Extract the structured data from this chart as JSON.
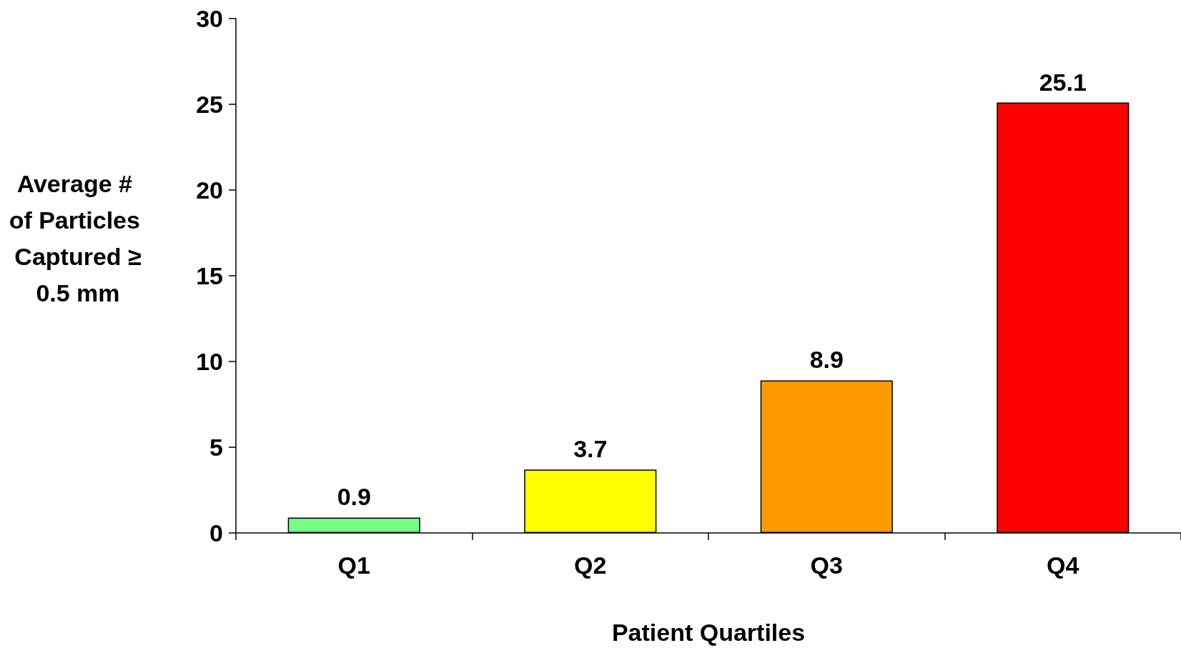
{
  "chart_data": {
    "type": "bar",
    "xlabel": "Patient Quartiles",
    "ylabel": "Average # of Particles Captured ≥0.5 mm",
    "categories": [
      "Q1",
      "Q2",
      "Q3",
      "Q4"
    ],
    "values": [
      0.9,
      3.7,
      8.9,
      25.1
    ],
    "colors": [
      "#77ff88",
      "#ffff00",
      "#ff9900",
      "#ff0000"
    ],
    "ylim": [
      0,
      30
    ],
    "yticks": [
      0,
      5,
      10,
      15,
      20,
      25,
      30
    ],
    "grid": false,
    "data_labels": true
  }
}
